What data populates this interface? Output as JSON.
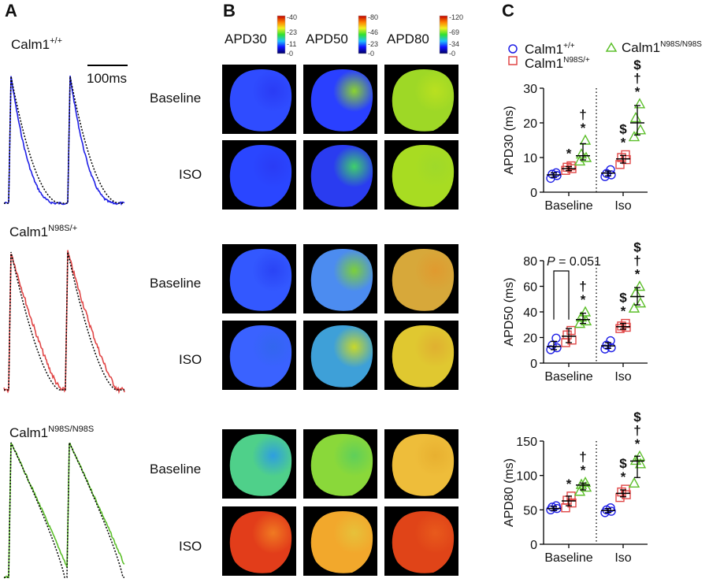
{
  "panel_labels": {
    "a": "A",
    "b": "B",
    "c": "C"
  },
  "genotypes": [
    {
      "base": "Calm1",
      "sup": "+/+",
      "color": "#1f1fe6"
    },
    {
      "base": "Calm1",
      "sup": "N98S/+",
      "color": "#e04646"
    },
    {
      "base": "Calm1",
      "sup": "N98S/N98S",
      "color": "#5cbf2a"
    }
  ],
  "panel_a": {
    "scale_bar_label": "100ms",
    "trace_overlay": "black dotted"
  },
  "panel_b": {
    "columns": [
      {
        "title": "APD30",
        "colorbar_ticks": [
          "40",
          "23",
          "11",
          "0"
        ]
      },
      {
        "title": "APD50",
        "colorbar_ticks": [
          "80",
          "46",
          "23",
          "0"
        ]
      },
      {
        "title": "APD80",
        "colorbar_ticks": [
          "120",
          "69",
          "34",
          "0"
        ]
      }
    ],
    "row_labels": [
      "Baseline",
      "ISO"
    ],
    "map_colors": [
      [
        [
          "#2f4cff",
          "#2a3cf5"
        ],
        [
          "#2a40ff",
          "#8bd32f"
        ],
        [
          "#9ed826",
          "#b9e020"
        ]
      ],
      [
        [
          "#2a46ff",
          "#2a3cf5"
        ],
        [
          "#2a3cf0",
          "#3fd06a"
        ],
        [
          "#a8dc22",
          "#9fd92a"
        ]
      ],
      [
        [
          "#3358ff",
          "#2a44f5"
        ],
        [
          "#4c8cf0",
          "#7ccf3a"
        ],
        [
          "#d7a83a",
          "#e09a2f"
        ]
      ],
      [
        [
          "#3a62ff",
          "#3266ef"
        ],
        [
          "#3ea0d8",
          "#c8d82a"
        ],
        [
          "#e0c830",
          "#e0b030"
        ]
      ],
      [
        [
          "#4fd08a",
          "#2e9ee0"
        ],
        [
          "#8ad83a",
          "#5fcf5a"
        ],
        [
          "#eebd3a",
          "#e8b030"
        ]
      ],
      [
        [
          "#e23d1a",
          "#f07a22"
        ],
        [
          "#f2a82c",
          "#e6c13a"
        ],
        [
          "#e04418",
          "#e85a1c"
        ]
      ]
    ]
  },
  "chart_data": [
    {
      "type": "scatter",
      "ylabel": "APD30 (ms)",
      "ylim": [
        0,
        30
      ],
      "yticks": [
        0,
        10,
        20,
        30
      ],
      "categories": [
        "Baseline",
        "Iso"
      ],
      "legend": [
        "Calm1+/+",
        "Calm1N98S/+",
        "Calm1N98S/N98S"
      ],
      "series": [
        {
          "name": "Calm1+/+",
          "values": [
            [
              4,
              4.8,
              5.2,
              5.6
            ],
            [
              4.5,
              5,
              5.4,
              6.5
            ]
          ],
          "mean": [
            5,
            5.5
          ],
          "err": [
            [
              4.3,
              5.6
            ],
            [
              4.7,
              6.1
            ]
          ],
          "annotations": [
            [],
            []
          ]
        },
        {
          "name": "Calm1N98S/+",
          "values": [
            [
              6.3,
              6.8,
              7.2,
              7.6
            ],
            [
              8,
              9.4,
              10,
              10.8
            ]
          ],
          "mean": [
            6.8,
            9.6
          ],
          "err": [
            [
              6.2,
              7.4
            ],
            [
              8.4,
              10.6
            ]
          ],
          "annotations": [
            [
              "*"
            ],
            [
              "*",
              "$"
            ]
          ]
        },
        {
          "name": "Calm1N98S/N98S",
          "values": [
            [
              9,
              10,
              11,
              15
            ],
            [
              16,
              18,
              21.5,
              25.5
            ]
          ],
          "mean": [
            10.5,
            20
          ],
          "err": [
            [
              9.3,
              14
            ],
            [
              16.5,
              25
            ]
          ],
          "annotations": [
            [
              "*",
              "†"
            ],
            [
              "*",
              "†",
              "$"
            ]
          ]
        }
      ]
    },
    {
      "type": "scatter",
      "ylabel": "APD50 (ms)",
      "ylim": [
        0,
        80
      ],
      "yticks": [
        0,
        20,
        40,
        60,
        80
      ],
      "categories": [
        "Baseline",
        "Iso"
      ],
      "bracket_label": "P = 0.051",
      "series": [
        {
          "name": "Calm1+/+",
          "values": [
            [
              10.5,
              12,
              14,
              19.5
            ],
            [
              11,
              12,
              14,
              17.5
            ]
          ],
          "mean": [
            13,
            13.5
          ],
          "err": [
            [
              10.5,
              17
            ],
            [
              11.5,
              16
            ]
          ],
          "annotations": [
            [],
            []
          ]
        },
        {
          "name": "Calm1N98S/+",
          "values": [
            [
              16,
              18,
              22,
              25.5
            ],
            [
              27,
              28,
              29,
              31
            ]
          ],
          "mean": [
            21,
            28.5
          ],
          "err": [
            [
              16,
              27
            ],
            [
              26.5,
              31
            ]
          ],
          "annotations": [
            [],
            [
              "*",
              "$"
            ]
          ]
        },
        {
          "name": "Calm1N98S/N98S",
          "values": [
            [
              31,
              33,
              36,
              40
            ],
            [
              43,
              47,
              55,
              60
            ]
          ],
          "mean": [
            34,
            52
          ],
          "err": [
            [
              31,
              39
            ],
            [
              45.5,
              59
            ]
          ],
          "annotations": [
            [
              "*",
              "†"
            ],
            [
              "*",
              "†",
              "$"
            ]
          ]
        }
      ]
    },
    {
      "type": "scatter",
      "ylabel": "APD80 (ms)",
      "ylim": [
        0,
        150
      ],
      "yticks": [
        0,
        50,
        100,
        150
      ],
      "categories": [
        "Baseline",
        "Iso"
      ],
      "series": [
        {
          "name": "Calm1+/+",
          "values": [
            [
              50,
              52,
              54,
              56
            ],
            [
              46,
              48,
              50,
              53
            ]
          ],
          "mean": [
            52,
            49
          ],
          "err": [
            [
              49,
              55
            ],
            [
              46,
              52
            ]
          ],
          "annotations": [
            [],
            []
          ]
        },
        {
          "name": "Calm1N98S/+",
          "values": [
            [
              53,
              60,
              64,
              70
            ],
            [
              68,
              72,
              76,
              80
            ]
          ],
          "mean": [
            63,
            74
          ],
          "err": [
            [
              56,
              70
            ],
            [
              69,
              79
            ]
          ],
          "annotations": [
            [
              "*"
            ],
            [
              "*",
              "$"
            ]
          ]
        },
        {
          "name": "Calm1N98S/N98S",
          "values": [
            [
              77,
              83,
              87,
              90
            ],
            [
              89,
              117,
              122,
              128
            ]
          ],
          "mean": [
            86,
            121
          ],
          "err": [
            [
              79,
              89
            ],
            [
              97,
              128
            ]
          ],
          "annotations": [
            [
              "*",
              "†"
            ],
            [
              "*",
              "†",
              "$"
            ]
          ]
        }
      ]
    }
  ]
}
